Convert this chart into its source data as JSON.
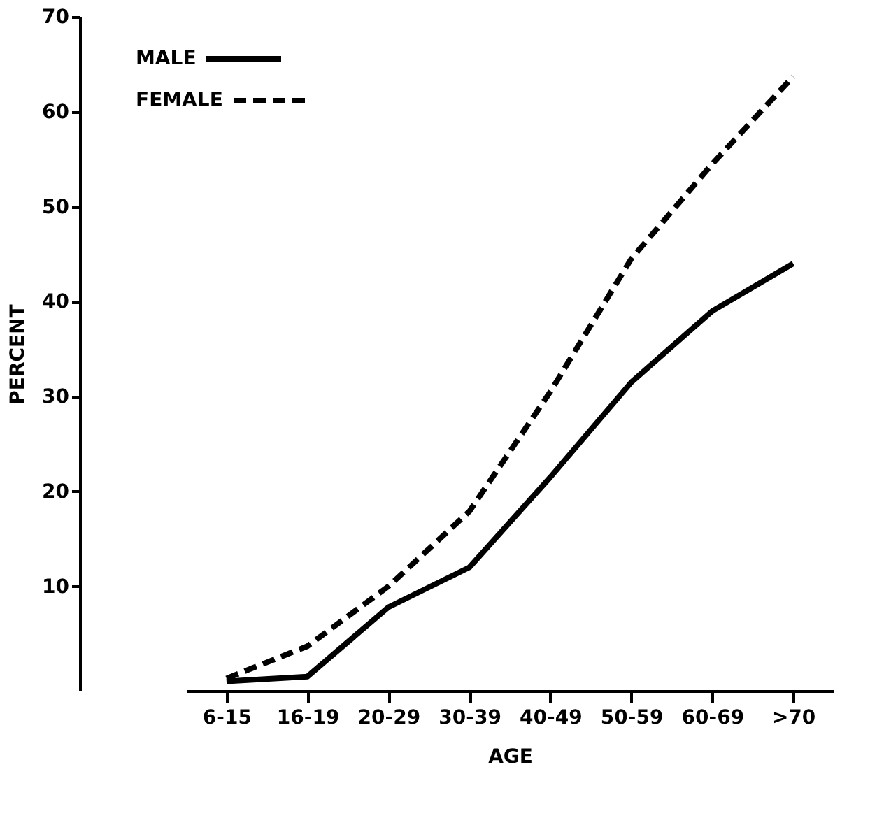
{
  "chart_data": {
    "type": "line",
    "xlabel": "AGE",
    "ylabel": "PERCENT",
    "categories": [
      "6-15",
      "16-19",
      "20-29",
      "30-39",
      "40-49",
      "50-59",
      "60-69",
      ">70"
    ],
    "ylim": [
      -1,
      70
    ],
    "yticks": [
      10,
      20,
      30,
      40,
      50,
      60,
      70
    ],
    "grid": false,
    "legend": "top left",
    "series": [
      {
        "name": "MALE",
        "color": "#000000",
        "line_style": "solid",
        "values": [
          0,
          0.5,
          7.8,
          12,
          21.5,
          31.5,
          39,
          44
        ]
      },
      {
        "name": "FEMALE",
        "color": "#000000",
        "line_style": "dashed",
        "values": [
          0.3,
          3.7,
          10,
          17.9,
          30.5,
          44.5,
          54.5,
          63.7
        ]
      }
    ]
  }
}
